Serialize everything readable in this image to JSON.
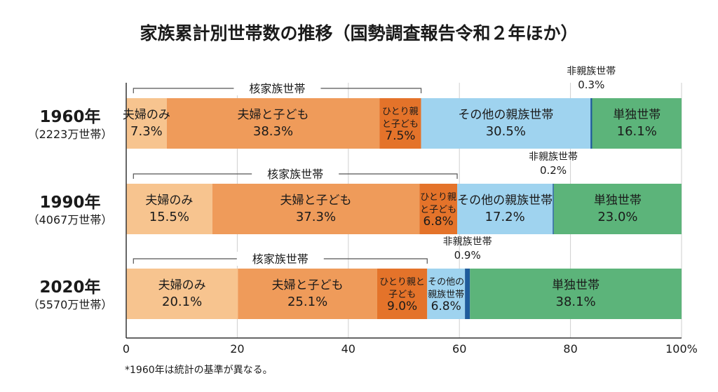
{
  "chart_data": {
    "type": "bar",
    "orientation": "horizontal",
    "stacked": true,
    "title": "家族累計別世帯数の推移（国勢調査報告令和２年ほか）",
    "xlim": [
      0,
      100
    ],
    "xticks": [
      "0",
      "20",
      "40",
      "60",
      "80",
      "100%"
    ],
    "footnote": "*1960年は統計の基準が異なる。",
    "group_label": "核家族世帯",
    "categories": [
      {
        "year": "1960年",
        "households": "（2223万世帯）"
      },
      {
        "year": "1990年",
        "households": "（4067万世帯）"
      },
      {
        "year": "2020年",
        "households": "（5570万世帯）"
      }
    ],
    "series": [
      {
        "name": "夫婦のみ",
        "color": "#f7c48f",
        "values": [
          7.3,
          15.5,
          20.1
        ],
        "labels": [
          [
            "夫婦のみ",
            "7.3%"
          ],
          [
            "夫婦のみ",
            "15.5%"
          ],
          [
            "夫婦のみ",
            "20.1%"
          ]
        ]
      },
      {
        "name": "夫婦と子ども",
        "color": "#ef9b5a",
        "values": [
          38.3,
          37.3,
          25.1
        ],
        "labels": [
          [
            "夫婦と子ども",
            "38.3%"
          ],
          [
            "夫婦と子ども",
            "37.3%"
          ],
          [
            "夫婦と子ども",
            "25.1%"
          ]
        ]
      },
      {
        "name": "ひとり親と子ども",
        "color": "#e4732a",
        "values": [
          7.5,
          6.8,
          9.0
        ],
        "labels": [
          [
            "ひとり親",
            "と子ども",
            "7.5%"
          ],
          [
            "ひとり親",
            "と子ども",
            "6.8%"
          ],
          [
            "ひとり親と",
            "子ども",
            "9.0%"
          ]
        ]
      },
      {
        "name": "その他の親族世帯",
        "color": "#9fd3ef",
        "values": [
          30.5,
          17.2,
          6.8
        ],
        "labels": [
          [
            "その他の親族世帯",
            "30.5%"
          ],
          [
            "その他の親族世帯",
            "17.2%"
          ],
          [
            "その他の",
            "親族世帯",
            "6.8%"
          ]
        ]
      },
      {
        "name": "非親族世帯",
        "color": "#1f5c9c",
        "values": [
          0.3,
          0.2,
          0.9
        ],
        "labels": [
          [
            "非親族世帯",
            "0.3%"
          ],
          [
            "非親族世帯",
            "0.2%"
          ],
          [
            "非親族世帯",
            "0.9%"
          ]
        ]
      },
      {
        "name": "単独世帯",
        "color": "#5cb47a",
        "values": [
          16.1,
          23.0,
          38.1
        ],
        "labels": [
          [
            "単独世帯",
            "16.1%"
          ],
          [
            "単独世帯",
            "23.0%"
          ],
          [
            "単独世帯",
            "38.1%"
          ]
        ]
      }
    ]
  }
}
